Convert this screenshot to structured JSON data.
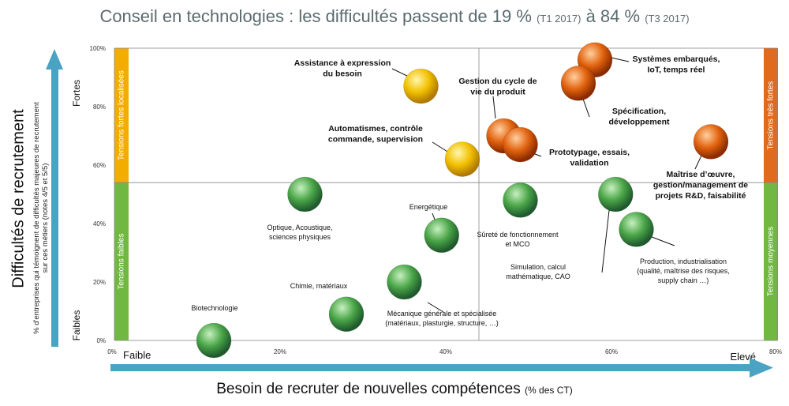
{
  "title": {
    "main": "Conseil en technologies : les difficultés passent de 19 %",
    "period1": "(T1 2017)",
    "connector": "à 84 %",
    "period2": "(T3 2017)"
  },
  "chart_data": {
    "type": "scatter",
    "title": "Conseil en technologies : les difficultés passent de 19 % (T1 2017) à 84 % (T3 2017)",
    "xlabel": "Besoin de recruter de nouvelles compétences",
    "xlabel_unit": "(% des CT)",
    "ylabel": "Difficultés de recrutement",
    "ylabel_sub": "% d'entreprises qui témoignent de difficultés majeures de recrutement sur ces métiers (notes 4/5 et 5/5)",
    "xlim": [
      0,
      80
    ],
    "ylim": [
      0,
      100
    ],
    "x_ticks": [
      "0%",
      "20%",
      "40%",
      "60%",
      "80%"
    ],
    "y_ticks": [
      "0%",
      "20%",
      "40%",
      "60%",
      "80%",
      "100%"
    ],
    "x_axis_ends": {
      "low": "Faible",
      "high": "Elevé"
    },
    "y_axis_ends": {
      "low": "Faibles",
      "high": "Fortes"
    },
    "reference_lines": {
      "x": 44,
      "y": 54
    },
    "colors": {
      "green": "#4aa547",
      "yellow": "#f2c000",
      "orange": "#e2630f",
      "bar_yellow": "#f2ad00",
      "bar_green": "#71b843",
      "bar_orange": "#e06a1e",
      "arrow": "#4aa3c3"
    },
    "zones": {
      "left_top": "Tensions fortes  localisées",
      "left_bottom": "Tensions faibles",
      "right_top": "Tensions très fortes",
      "right_bottom": "Tensions moyennes"
    },
    "points": [
      {
        "label": "Biotechnologie",
        "x": 12,
        "y": 0,
        "color": "green"
      },
      {
        "label": "Chimie, matériaux",
        "x": 28,
        "y": 9,
        "color": "green"
      },
      {
        "label": "Mécanique générale et spécialisée (matériaux, plasturgie, structure, …)",
        "x": 35,
        "y": 20,
        "color": "green"
      },
      {
        "label": "Optique, Acoustique, sciences physiques",
        "x": 23,
        "y": 50,
        "color": "green"
      },
      {
        "label": "Energétique",
        "x": 39.5,
        "y": 36,
        "color": "green"
      },
      {
        "label": "Sûreté de fonctionnement et MCO",
        "x": 49,
        "y": 48,
        "color": "green"
      },
      {
        "label": "Simulation, calcul mathématique, CAO",
        "x": 60.5,
        "y": 50,
        "color": "green"
      },
      {
        "label": "Production, industrialisation (qualité, maîtrise des risques, supply chain …)",
        "x": 63,
        "y": 38,
        "color": "green"
      },
      {
        "label": "Assistance à expression du besoin",
        "x": 37,
        "y": 87,
        "color": "yellow"
      },
      {
        "label": "Automatismes, contrôle commande, supervision",
        "x": 42,
        "y": 62,
        "color": "yellow"
      },
      {
        "label": "Gestion du cycle de vie du produit",
        "x": 47,
        "y": 70,
        "color": "orange"
      },
      {
        "label": "Prototypage, essais, validation",
        "x": 49,
        "y": 67,
        "color": "orange"
      },
      {
        "label": "Systèmes embarqués, IoT, temps réel",
        "x": 58,
        "y": 96,
        "color": "orange"
      },
      {
        "label": "Spécification, développement",
        "x": 56,
        "y": 88,
        "color": "orange"
      },
      {
        "label": "Maîtrise d’œuvre, gestion/management de projets R&D, faisabilité",
        "x": 72,
        "y": 68,
        "color": "orange"
      }
    ]
  }
}
